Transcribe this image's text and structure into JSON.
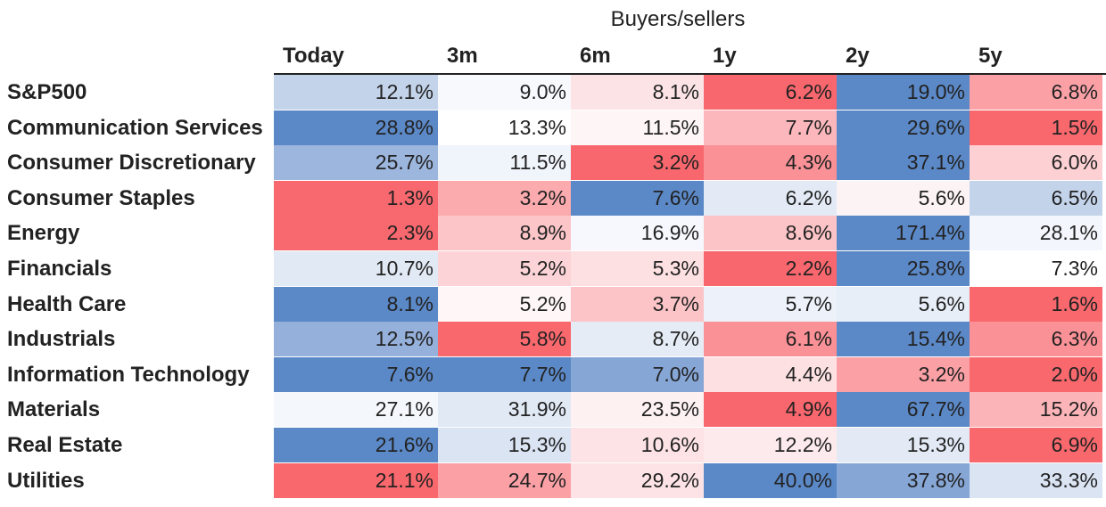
{
  "chart_data": {
    "type": "heatmap",
    "title": "Buyers/sellers",
    "columns": [
      "Today",
      "3m",
      "6m",
      "1y",
      "2y",
      "5y"
    ],
    "rows": [
      {
        "name": "S&P500",
        "labels": [
          "12.1%",
          "9.0%",
          "8.1%",
          "6.2%",
          "19.0%",
          "6.8%"
        ],
        "colors": [
          "#c3d3ea",
          "#f7f9fd",
          "#fce4e6",
          "#f7676d",
          "#5b88c6",
          "#fba1a6"
        ]
      },
      {
        "name": "Communication Services",
        "labels": [
          "28.8%",
          "13.3%",
          "11.5%",
          "7.7%",
          "29.6%",
          "1.5%"
        ],
        "colors": [
          "#5b88c6",
          "#ffffff",
          "#fef6f6",
          "#fbb7bb",
          "#5b88c6",
          "#f8686d"
        ]
      },
      {
        "name": "Consumer Discretionary",
        "labels": [
          "25.7%",
          "11.5%",
          "3.2%",
          "4.3%",
          "37.1%",
          "6.0%"
        ],
        "colors": [
          "#9cb6de",
          "#f0f4fb",
          "#f7676d",
          "#fa9196",
          "#5b88c6",
          "#fdd0d3"
        ]
      },
      {
        "name": "Consumer Staples",
        "labels": [
          "1.3%",
          "3.2%",
          "7.6%",
          "6.2%",
          "5.6%",
          "6.5%"
        ],
        "colors": [
          "#f8696f",
          "#fbaaae",
          "#5b88c6",
          "#e3eaf6",
          "#fcf3f4",
          "#c3d3ea"
        ]
      },
      {
        "name": "Energy",
        "labels": [
          "2.3%",
          "8.9%",
          "16.9%",
          "8.6%",
          "171.4%",
          "28.1%"
        ],
        "colors": [
          "#f8696f",
          "#fcc6c9",
          "#f6f8fd",
          "#fcc4c7",
          "#5b88c6",
          "#f3f6fc"
        ]
      },
      {
        "name": "Financials",
        "labels": [
          "10.7%",
          "5.2%",
          "5.3%",
          "2.2%",
          "25.8%",
          "7.3%"
        ],
        "colors": [
          "#e1e9f5",
          "#fcd4d7",
          "#fde0e2",
          "#f7676d",
          "#5b88c6",
          "#ffffff"
        ]
      },
      {
        "name": "Health Care",
        "labels": [
          "8.1%",
          "5.2%",
          "3.7%",
          "5.7%",
          "5.6%",
          "1.6%"
        ],
        "colors": [
          "#5b88c6",
          "#fef6f7",
          "#fcc4c7",
          "#edf2fa",
          "#e8eef8",
          "#f8686d"
        ]
      },
      {
        "name": "Industrials",
        "labels": [
          "12.5%",
          "5.8%",
          "8.7%",
          "6.1%",
          "15.4%",
          "6.3%"
        ],
        "colors": [
          "#95b0da",
          "#f8686d",
          "#e6ecf6",
          "#fa9196",
          "#5b88c6",
          "#fa9196"
        ]
      },
      {
        "name": "Information Technology",
        "labels": [
          "7.6%",
          "7.7%",
          "7.0%",
          "4.4%",
          "3.2%",
          "2.0%"
        ],
        "colors": [
          "#5b88c6",
          "#5b88c6",
          "#86a6d6",
          "#fde0e2",
          "#fba1a6",
          "#f8686d"
        ]
      },
      {
        "name": "Materials",
        "labels": [
          "27.1%",
          "31.9%",
          "23.5%",
          "4.9%",
          "67.7%",
          "15.2%"
        ],
        "colors": [
          "#f4f7fc",
          "#e1e9f5",
          "#fef1f2",
          "#f7676d",
          "#5b88c6",
          "#fbb4b8"
        ]
      },
      {
        "name": "Real Estate",
        "labels": [
          "21.6%",
          "15.3%",
          "10.6%",
          "12.2%",
          "15.3%",
          "6.9%"
        ],
        "colors": [
          "#5b88c6",
          "#dae4f3",
          "#fde3e5",
          "#fdeaec",
          "#e3eaf6",
          "#f8686d"
        ]
      },
      {
        "name": "Utilities",
        "labels": [
          "21.1%",
          "24.7%",
          "29.2%",
          "40.0%",
          "37.8%",
          "33.3%"
        ],
        "colors": [
          "#f8686d",
          "#fba1a6",
          "#fde3e5",
          "#5b88c6",
          "#86a6d6",
          "#dae4f3"
        ]
      }
    ]
  }
}
